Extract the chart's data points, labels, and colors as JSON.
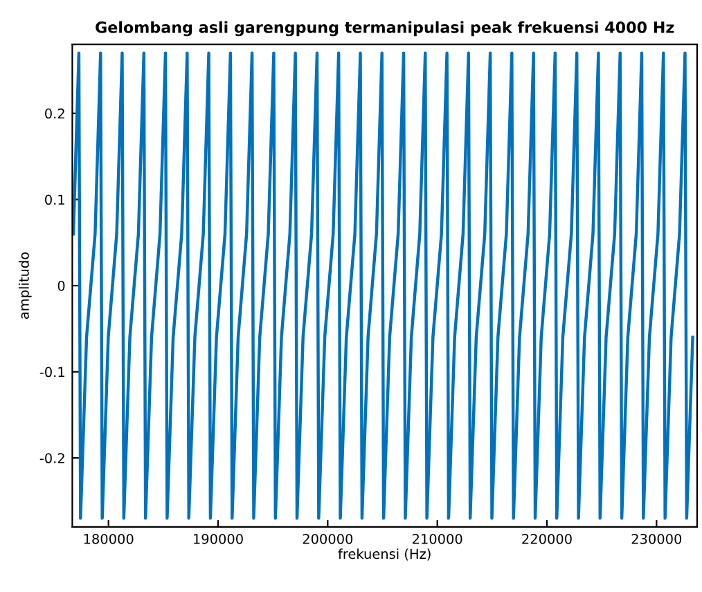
{
  "chart_data": {
    "type": "line",
    "title": "Gelombang asli garengpung termanipulasi peak frekuensi 4000 Hz",
    "xlabel": "frekuensi (Hz)",
    "ylabel": "amplitudo",
    "xlim": [
      176700,
      233700
    ],
    "xticks": [
      180000,
      190000,
      200000,
      210000,
      220000,
      230000
    ],
    "ylim": [
      -0.28,
      0.28
    ],
    "yticks": [
      -0.2,
      -0.1,
      0,
      0.1,
      0.2
    ],
    "grid": false,
    "marker": "none",
    "line_style": "solid",
    "series": [
      {
        "color": "#0072bd",
        "x": [
          176800,
          177300,
          177450,
          178000,
          178780,
          179280,
          179430,
          179980,
          180750,
          181250,
          181400,
          181950,
          182730,
          183230,
          183380,
          183930,
          184700,
          185200,
          185350,
          185900,
          186680,
          187180,
          187330,
          187880,
          188650,
          189150,
          189300,
          189850,
          190630,
          191130,
          191280,
          191830,
          192600,
          193100,
          193250,
          193800,
          194580,
          195080,
          195230,
          195780,
          196550,
          197050,
          197200,
          197750,
          198530,
          199030,
          199180,
          199730,
          200500,
          201000,
          201150,
          201700,
          202480,
          202980,
          203130,
          203680,
          204450,
          204950,
          205100,
          205650,
          206430,
          206930,
          207080,
          207630,
          208400,
          208900,
          209050,
          209600,
          210380,
          210880,
          211030,
          211580,
          212350,
          212850,
          213000,
          213550,
          214330,
          214830,
          214980,
          215530,
          216300,
          216800,
          216950,
          217500,
          218280,
          218780,
          218930,
          219480,
          220250,
          220750,
          220900,
          221450,
          222230,
          222730,
          222880,
          223430,
          224200,
          224700,
          224850,
          225400,
          226180,
          226680,
          226830,
          227380,
          228150,
          228650,
          228800,
          229350,
          230130,
          230630,
          230780,
          231330,
          232100,
          232600,
          232750,
          233300
        ],
        "values": [
          0.06,
          0.27,
          -0.27,
          -0.06,
          0.06,
          0.27,
          -0.27,
          -0.06,
          0.06,
          0.27,
          -0.27,
          -0.06,
          0.06,
          0.27,
          -0.27,
          -0.06,
          0.06,
          0.27,
          -0.27,
          -0.06,
          0.06,
          0.27,
          -0.27,
          -0.06,
          0.06,
          0.27,
          -0.27,
          -0.06,
          0.06,
          0.27,
          -0.27,
          -0.06,
          0.06,
          0.27,
          -0.27,
          -0.06,
          0.06,
          0.27,
          -0.27,
          -0.06,
          0.06,
          0.27,
          -0.27,
          -0.06,
          0.06,
          0.27,
          -0.27,
          -0.06,
          0.06,
          0.27,
          -0.27,
          -0.06,
          0.06,
          0.27,
          -0.27,
          -0.06,
          0.06,
          0.27,
          -0.27,
          -0.06,
          0.06,
          0.27,
          -0.27,
          -0.06,
          0.06,
          0.27,
          -0.27,
          -0.06,
          0.06,
          0.27,
          -0.27,
          -0.06,
          0.06,
          0.27,
          -0.27,
          -0.06,
          0.06,
          0.27,
          -0.27,
          -0.06,
          0.06,
          0.27,
          -0.27,
          -0.06,
          0.06,
          0.27,
          -0.27,
          -0.06,
          0.06,
          0.27,
          -0.27,
          -0.06,
          0.06,
          0.27,
          -0.27,
          -0.06,
          0.06,
          0.27,
          -0.27,
          -0.06,
          0.06,
          0.27,
          -0.27,
          -0.06,
          0.06,
          0.27,
          -0.27,
          -0.06,
          0.06,
          0.27,
          -0.27,
          -0.06,
          0.06,
          0.27,
          -0.27,
          -0.06
        ]
      }
    ]
  }
}
